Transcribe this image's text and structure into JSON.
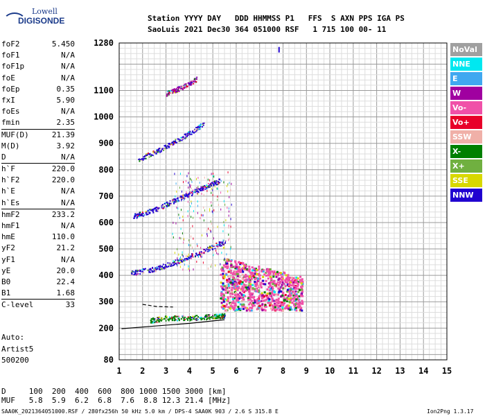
{
  "logo": {
    "top": "Lowell",
    "bottom": "DIGISONDE"
  },
  "header": {
    "line1": "Station YYYY DAY   DDD HHMMSS P1   FFS  S AXN PPS IGA PS",
    "line2": "SaoLuis 2021 Dec30 364 051000 RSF   1 715 100 00- 11"
  },
  "params": [
    {
      "group": [
        {
          "k": "foF2",
          "v": "5.450"
        },
        {
          "k": "foF1",
          "v": "N/A"
        },
        {
          "k": "foF1p",
          "v": "N/A"
        },
        {
          "k": "foE",
          "v": "N/A"
        },
        {
          "k": "foEp",
          "v": "0.35"
        },
        {
          "k": "fxI",
          "v": "5.90"
        },
        {
          "k": "foEs",
          "v": "N/A"
        },
        {
          "k": "fmin",
          "v": "2.35"
        }
      ]
    },
    {
      "group": [
        {
          "k": "MUF(D)",
          "v": "21.39"
        },
        {
          "k": "M(D)",
          "v": "3.92"
        },
        {
          "k": "D",
          "v": "N/A"
        }
      ]
    },
    {
      "group": [
        {
          "k": "h`F",
          "v": "220.0"
        },
        {
          "k": "h`F2",
          "v": "220.0"
        },
        {
          "k": "h`E",
          "v": "N/A"
        },
        {
          "k": "h`Es",
          "v": "N/A"
        }
      ]
    },
    {
      "group": [
        {
          "k": "hmF2",
          "v": "233.2"
        },
        {
          "k": "hmF1",
          "v": "N/A"
        },
        {
          "k": "hmE",
          "v": "110.0"
        },
        {
          "k": "yF2",
          "v": "21.2"
        },
        {
          "k": "yF1",
          "v": "N/A"
        },
        {
          "k": "yE",
          "v": "20.0"
        },
        {
          "k": "B0",
          "v": "22.4"
        },
        {
          "k": "B1",
          "v": "1.68"
        }
      ]
    },
    {
      "group": [
        {
          "k": "C-level",
          "v": "33"
        }
      ]
    }
  ],
  "auto": {
    "l1": "Auto:",
    "l2": "Artist5",
    "l3": "500200"
  },
  "legend": [
    {
      "label": "NoVal",
      "color": "#a0a0a0"
    },
    {
      "label": "NNE",
      "color": "#00e8f0"
    },
    {
      "label": "E",
      "color": "#40a8f0"
    },
    {
      "label": "W",
      "color": "#a000a0"
    },
    {
      "label": "Vo-",
      "color": "#f050a8"
    },
    {
      "label": "Vo+",
      "color": "#e8002a"
    },
    {
      "label": "SSW",
      "color": "#f0b0a8"
    },
    {
      "label": "X-",
      "color": "#008000"
    },
    {
      "label": "X+",
      "color": "#70b040"
    },
    {
      "label": "SSE",
      "color": "#d8d800"
    },
    {
      "label": "NNW",
      "color": "#2000d0"
    }
  ],
  "chart_data": {
    "type": "scatter",
    "xlim": [
      1,
      15
    ],
    "ylim": [
      80,
      1280
    ],
    "x_ticks": [
      "1",
      "2",
      "3",
      "4",
      "5",
      "6",
      "7",
      "8",
      "9",
      "10",
      "11",
      "12",
      "13",
      "14",
      "15"
    ],
    "y_ticks": [
      "80",
      "200",
      "300",
      "400",
      "500",
      "600",
      "700",
      "800",
      "900",
      "1000",
      "1100",
      "1280"
    ],
    "grid": true,
    "traces": [
      {
        "name": "X-",
        "color": "#008000",
        "points": [
          [
            2.3,
            230
          ],
          [
            3,
            240
          ],
          [
            4,
            240
          ],
          [
            5,
            245
          ],
          [
            5.5,
            250
          ]
        ]
      },
      {
        "name": "NNW",
        "color": "#2000d0",
        "points": [
          [
            1.5,
            410
          ],
          [
            2.5,
            425
          ],
          [
            3.5,
            455
          ],
          [
            4.5,
            490
          ],
          [
            5.5,
            530
          ]
        ]
      },
      {
        "name": "NNW",
        "color": "#2000d0",
        "points": [
          [
            1.6,
            625
          ],
          [
            2.5,
            650
          ],
          [
            3.5,
            690
          ],
          [
            4.5,
            730
          ],
          [
            5.3,
            760
          ]
        ]
      },
      {
        "name": "NNW",
        "color": "#2000d0",
        "points": [
          [
            1.8,
            840
          ],
          [
            2.8,
            880
          ],
          [
            3.8,
            930
          ],
          [
            4.6,
            975
          ]
        ]
      },
      {
        "name": "W",
        "color": "#a000a0",
        "points": [
          [
            3,
            1090
          ],
          [
            3.6,
            1110
          ],
          [
            4.3,
            1145
          ]
        ]
      }
    ],
    "clusters": [
      {
        "name": "Vo-",
        "color": "#f050a8",
        "x": [
          5.3,
          8.8
        ],
        "y": [
          270,
          470
        ]
      }
    ],
    "spot_x": 7.8,
    "spot_y": 1265
  },
  "bottom": {
    "d_line": "D     100  200  400  600  800 1000 1500 3000 [km]",
    "muf_line": "MUF   5.8  5.9  6.2  6.8  7.6  8.8 12.3 21.4 [MHz]",
    "footer": "SAA0K_2021364051000.RSF / 280fx256h 50 kHz 5.0 km / DPS-4 SAA0K 903 / 2.6 S 315.8 E",
    "version": "Ion2Png 1.3.17"
  }
}
